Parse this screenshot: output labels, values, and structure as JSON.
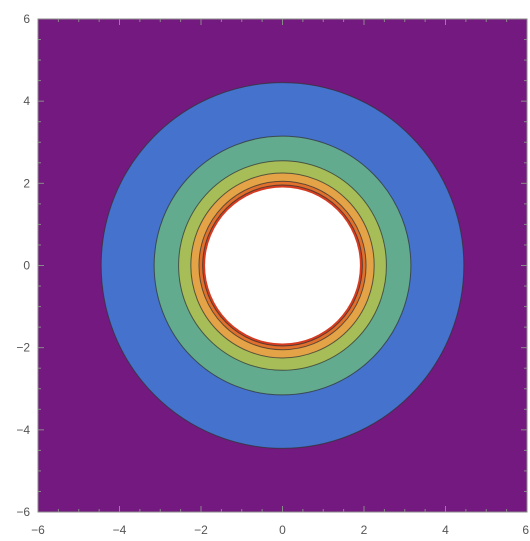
{
  "chart_data": {
    "type": "contour",
    "title": "",
    "xlabel": "",
    "ylabel": "",
    "xlim": [
      -6,
      6
    ],
    "ylim": [
      -6,
      6
    ],
    "grid": false,
    "legend": "none",
    "x_ticks": [
      {
        "value": -6,
        "label": "−6"
      },
      {
        "value": -4,
        "label": "−4"
      },
      {
        "value": -2,
        "label": "−2"
      },
      {
        "value": 0,
        "label": "0"
      },
      {
        "value": 2,
        "label": "2"
      },
      {
        "value": 4,
        "label": "4"
      },
      {
        "value": 6,
        "label": "6"
      }
    ],
    "y_ticks": [
      {
        "value": -6,
        "label": "−6"
      },
      {
        "value": -4,
        "label": "−4"
      },
      {
        "value": -2,
        "label": "−2"
      },
      {
        "value": 0,
        "label": "0"
      },
      {
        "value": 2,
        "label": "2"
      },
      {
        "value": 4,
        "label": "4"
      },
      {
        "value": 6,
        "label": "6"
      }
    ],
    "center": [
      0,
      0
    ],
    "background_color": "#74197f",
    "hole_radius": 1.9,
    "bands": [
      {
        "outer_radius": 4.45,
        "color": "#4472cc"
      },
      {
        "outer_radius": 3.15,
        "color": "#63ab8e"
      },
      {
        "outer_radius": 2.55,
        "color": "#a7bd57"
      },
      {
        "outer_radius": 2.25,
        "color": "#e3a346"
      },
      {
        "outer_radius": 2.05,
        "color": "#e0702c"
      },
      {
        "outer_radius": 1.96,
        "color": "#d63c22"
      }
    ]
  }
}
